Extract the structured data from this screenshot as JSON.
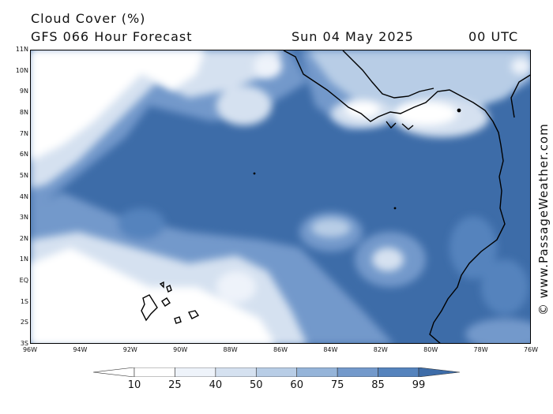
{
  "header": {
    "title": "Cloud Cover (%)",
    "subtitle": "GFS 066 Hour Forecast",
    "date": "Sun 04 May 2025",
    "time": "00 UTC"
  },
  "credit": "© www.PassageWeather.com",
  "map": {
    "lat_labels": [
      "11N",
      "10N",
      "9N",
      "8N",
      "7N",
      "6N",
      "5N",
      "4N",
      "3N",
      "2N",
      "1N",
      "EQ",
      "1S",
      "2S",
      "3S"
    ],
    "lon_labels": [
      "96W",
      "94W",
      "92W",
      "90W",
      "88W",
      "86W",
      "84W",
      "82W",
      "80W",
      "78W",
      "76W"
    ],
    "lat_range": [
      -3,
      11
    ],
    "lon_range": [
      -96,
      -76
    ]
  },
  "colorbar": {
    "labels": [
      "10",
      "25",
      "40",
      "50",
      "60",
      "75",
      "85",
      "99"
    ],
    "colors": [
      "#ffffff",
      "#eef3fa",
      "#d5e1f0",
      "#b8cde6",
      "#95b4d9",
      "#7399cb",
      "#5583bd",
      "#3d6ca8"
    ]
  }
}
